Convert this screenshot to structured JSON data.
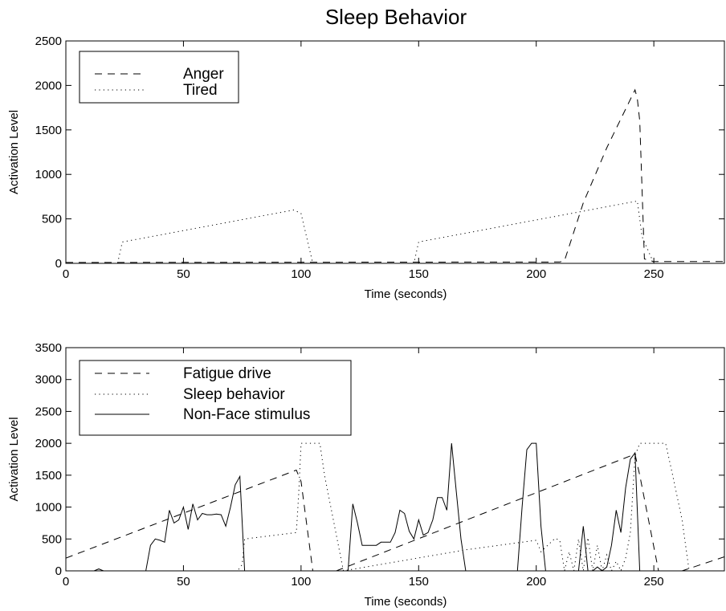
{
  "title": "Sleep Behavior",
  "chart_data": [
    {
      "type": "line",
      "xlabel": "Time (seconds)",
      "ylabel": "Activation Level",
      "xlim": [
        0,
        280
      ],
      "ylim": [
        0,
        2500
      ],
      "xticks": [
        0,
        50,
        100,
        150,
        200,
        250
      ],
      "yticks": [
        0,
        500,
        1000,
        1500,
        2000,
        2500
      ],
      "grid": false,
      "legend": "top-left",
      "series": [
        {
          "name": "Anger",
          "style": "dashed",
          "x": [
            0,
            210,
            212,
            220,
            230,
            242,
            243,
            244,
            246,
            250,
            280
          ],
          "y": [
            10,
            15,
            30,
            680,
            1300,
            1950,
            1850,
            1600,
            50,
            20,
            20
          ]
        },
        {
          "name": "Tired",
          "style": "dotted",
          "x": [
            0,
            22,
            24,
            97,
            100,
            105,
            148,
            150,
            243,
            245,
            250,
            280
          ],
          "y": [
            0,
            0,
            240,
            600,
            560,
            0,
            0,
            240,
            700,
            300,
            0,
            0
          ]
        }
      ]
    },
    {
      "type": "line",
      "xlabel": "Time (seconds)",
      "ylabel": "Activation Level",
      "xlim": [
        0,
        280
      ],
      "ylim": [
        0,
        3500
      ],
      "xticks": [
        0,
        50,
        100,
        150,
        200,
        250
      ],
      "yticks": [
        0,
        500,
        1000,
        1500,
        2000,
        2500,
        3000,
        3500
      ],
      "grid": false,
      "legend": "top-left",
      "series": [
        {
          "name": "Fatigue drive",
          "style": "dashed",
          "x": [
            0,
            98,
            100,
            105,
            108,
            115,
            242,
            244,
            252,
            262,
            280
          ],
          "y": [
            200,
            1580,
            1400,
            0,
            0,
            0,
            1830,
            1500,
            0,
            0,
            220
          ]
        },
        {
          "name": "Sleep behavior",
          "style": "dotted",
          "x": [
            0,
            73,
            75,
            76,
            98,
            99,
            100,
            108,
            110,
            118,
            170,
            200,
            202,
            208,
            210,
            212,
            214,
            216,
            218,
            220,
            222,
            224,
            226,
            228,
            230,
            232,
            234,
            236,
            238,
            240,
            242,
            244,
            246,
            255,
            258,
            262,
            265,
            280
          ],
          "y": [
            0,
            0,
            100,
            500,
            600,
            1200,
            2000,
            2000,
            1500,
            0,
            330,
            480,
            300,
            510,
            480,
            0,
            300,
            0,
            500,
            0,
            520,
            0,
            400,
            0,
            250,
            0,
            150,
            0,
            200,
            600,
            1800,
            2000,
            2000,
            2000,
            1500,
            800,
            0,
            0
          ]
        },
        {
          "name": "Non-Face stimulus",
          "style": "solid",
          "x": [
            0,
            12,
            14,
            16,
            34,
            36,
            38,
            40,
            42,
            44,
            46,
            48,
            50,
            52,
            54,
            56,
            58,
            60,
            62,
            64,
            66,
            68,
            70,
            72,
            74,
            76,
            120,
            122,
            124,
            126,
            128,
            130,
            132,
            134,
            136,
            138,
            140,
            142,
            144,
            146,
            148,
            150,
            152,
            154,
            156,
            158,
            160,
            162,
            164,
            166,
            168,
            170,
            192,
            194,
            196,
            198,
            200,
            202,
            204,
            206,
            208,
            210,
            212,
            214,
            216,
            218,
            220,
            222,
            224,
            226,
            228,
            230,
            232,
            234,
            236,
            238,
            240,
            242,
            244
          ],
          "y": [
            0,
            0,
            30,
            0,
            0,
            400,
            500,
            480,
            450,
            950,
            750,
            800,
            1000,
            650,
            1050,
            800,
            900,
            880,
            880,
            890,
            880,
            700,
            1000,
            1350,
            1480,
            0,
            0,
            1050,
            750,
            400,
            400,
            400,
            400,
            450,
            450,
            450,
            600,
            950,
            900,
            620,
            500,
            800,
            560,
            600,
            800,
            1150,
            1150,
            950,
            2000,
            1250,
            500,
            0,
            0,
            1000,
            1900,
            2000,
            2000,
            700,
            0,
            0,
            0,
            0,
            0,
            0,
            0,
            0,
            700,
            0,
            0,
            60,
            0,
            60,
            400,
            950,
            600,
            1300,
            1750,
            1850,
            0
          ]
        }
      ]
    }
  ]
}
